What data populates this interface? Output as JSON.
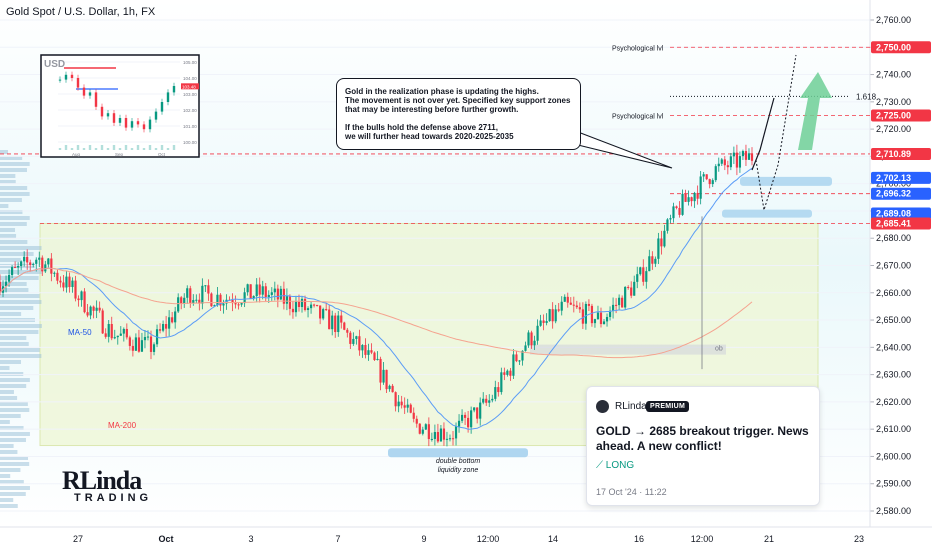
{
  "header": {
    "title": "Gold Spot / U.S. Dollar, 1h, FX"
  },
  "colors": {
    "up": "#089981",
    "down": "#f23645",
    "accent_red": "#f23645",
    "accent_blue": "#2962ff",
    "zone_green": "#eef6d3",
    "zone_blue": "#a6d2ee",
    "arrow_green": "#6fcf97"
  },
  "chart_data": {
    "type": "candlestick",
    "title": "Gold Spot / U.S. Dollar, 1h, FX",
    "x_ticks": [
      "27",
      "Oct",
      "3",
      "7",
      "9",
      "12:00",
      "14",
      "16",
      "12:00",
      "21",
      "23"
    ],
    "y_ticks": [
      2580,
      2590,
      2600,
      2610,
      2620,
      2630,
      2640,
      2650,
      2660,
      2670,
      2680,
      2690,
      2700,
      2710,
      2720,
      2730,
      2740,
      2750,
      2760
    ],
    "ylim": [
      2575,
      2768
    ],
    "series_overview": [
      {
        "x": "26 Sep",
        "y": 2664
      },
      {
        "x": "27",
        "y": 2673
      },
      {
        "x": "27 late",
        "y": 2660
      },
      {
        "x": "30",
        "y": 2645
      },
      {
        "x": "Oct",
        "y": 2640
      },
      {
        "x": "1",
        "y": 2660
      },
      {
        "x": "2",
        "y": 2658
      },
      {
        "x": "3",
        "y": 2660
      },
      {
        "x": "4",
        "y": 2655
      },
      {
        "x": "7",
        "y": 2648
      },
      {
        "x": "8",
        "y": 2633
      },
      {
        "x": "9",
        "y": 2612
      },
      {
        "x": "9 12:00",
        "y": 2608
      },
      {
        "x": "10",
        "y": 2620
      },
      {
        "x": "11",
        "y": 2642
      },
      {
        "x": "14",
        "y": 2655
      },
      {
        "x": "15",
        "y": 2650
      },
      {
        "x": "16",
        "y": 2665
      },
      {
        "x": "17",
        "y": 2690
      },
      {
        "x": "17 12:00",
        "y": 2705
      },
      {
        "x": "18",
        "y": 2710
      }
    ],
    "indicators": [
      {
        "name": "MA-50",
        "color": "#5b9cf6"
      },
      {
        "name": "MA-200",
        "color": "#f23645"
      }
    ],
    "price_labels": [
      {
        "value": "2,750.00",
        "color": "#f23645"
      },
      {
        "value": "2,725.00",
        "color": "#f23645"
      },
      {
        "value": "2,710.89",
        "color": "#f23645"
      },
      {
        "value": "2,702.13",
        "color": "#2962ff"
      },
      {
        "value": "2,696.32",
        "color": "#2962ff"
      },
      {
        "value": "2,689.08",
        "color": "#2962ff"
      },
      {
        "value": "2,685.41",
        "color": "#f23645"
      }
    ],
    "levels": [
      {
        "label": "Psychological lvl",
        "value": 2750
      },
      {
        "label": "Psychological lvl",
        "value": 2725
      },
      {
        "label": "1.618",
        "value": 2732
      }
    ],
    "annotations": [
      "double bottom",
      "liquidity zone",
      "ob",
      "MA-50",
      "MA-200"
    ]
  },
  "note": {
    "lines": [
      "Gold in the realization phase is updating the highs.",
      "The movement is not over yet. Specified key support zones",
      "that may be interesting before further growth.",
      "",
      "If the bulls hold the defense above 2711,",
      "we will further head towards 2020-2025-2035"
    ]
  },
  "inset": {
    "title": "USD",
    "y_ticks": [
      "105.00",
      "104.00",
      "103.00",
      "102.00",
      "101.00",
      "100.00"
    ],
    "badge": "103.48",
    "x_ticks": [
      "Aug",
      "Sep",
      "Oct"
    ],
    "series": [
      103.9,
      104.2,
      104.0,
      103.4,
      102.9,
      103.1,
      102.2,
      101.6,
      101.8,
      101.2,
      101.5,
      100.9,
      101.3,
      101.1,
      100.8,
      101.4,
      101.9,
      102.5,
      103.1,
      103.5
    ]
  },
  "card": {
    "author": "RLinda",
    "badge": "PREMIUM",
    "title": "GOLD → 2685 breakout trigger. News ahead. A new conflict!",
    "direction": "LONG",
    "date": "17 Oct '24 · 11:22"
  },
  "logo": {
    "name": "RLinda",
    "sub": "TRADING"
  }
}
